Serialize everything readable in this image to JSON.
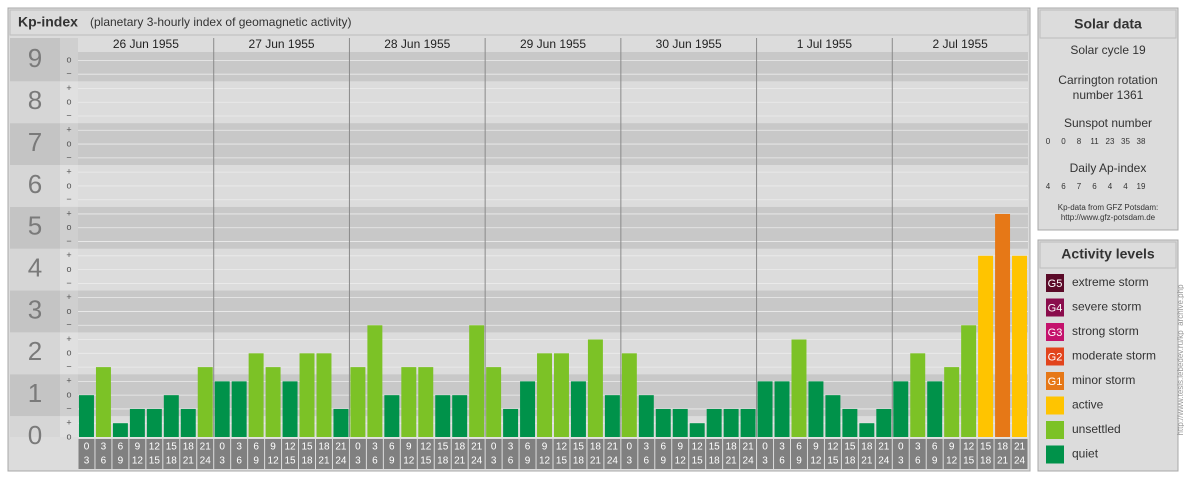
{
  "chart_data": {
    "type": "bar",
    "title": "Kp-index",
    "subtitle": "(planetary 3-hourly index of geomagnetic activity)",
    "days": [
      "26 Jun 1955",
      "27 Jun 1955",
      "28 Jun 1955",
      "29 Jun 1955",
      "30 Jun 1955",
      "1 Jul 1955",
      "2 Jul 1955"
    ],
    "time_slots": [
      [
        "0",
        "3"
      ],
      [
        "3",
        "6"
      ],
      [
        "6",
        "9"
      ],
      [
        "9",
        "12"
      ],
      [
        "12",
        "15"
      ],
      [
        "15",
        "18"
      ],
      [
        "18",
        "21"
      ],
      [
        "21",
        "24"
      ]
    ],
    "values": [
      1,
      1.67,
      0.33,
      0.67,
      0.67,
      1,
      0.67,
      1.67,
      1.33,
      1.33,
      2,
      1.67,
      1.33,
      2,
      2,
      0.67,
      1.67,
      2.67,
      1,
      1.67,
      1.67,
      1,
      1,
      2.67,
      1.67,
      0.67,
      1.33,
      2,
      2,
      1.33,
      2.33,
      1,
      2,
      1,
      0.67,
      0.67,
      0.33,
      0.67,
      0.67,
      0.67,
      1.33,
      1.33,
      2.33,
      1.33,
      1,
      0.67,
      0.33,
      0.67,
      1.33,
      2,
      1.33,
      1.67,
      2.67,
      4.33,
      5.33,
      4.33
    ],
    "colors": [
      "#00924a",
      "#7cc226",
      "#00924a",
      "#00924a",
      "#00924a",
      "#00924a",
      "#00924a",
      "#7cc226",
      "#00924a",
      "#00924a",
      "#7cc226",
      "#7cc226",
      "#00924a",
      "#7cc226",
      "#7cc226",
      "#00924a",
      "#7cc226",
      "#7cc226",
      "#00924a",
      "#7cc226",
      "#7cc226",
      "#00924a",
      "#00924a",
      "#7cc226",
      "#7cc226",
      "#00924a",
      "#00924a",
      "#7cc226",
      "#7cc226",
      "#00924a",
      "#7cc226",
      "#00924a",
      "#7cc226",
      "#00924a",
      "#00924a",
      "#00924a",
      "#00924a",
      "#00924a",
      "#00924a",
      "#00924a",
      "#00924a",
      "#00924a",
      "#7cc226",
      "#00924a",
      "#00924a",
      "#00924a",
      "#00924a",
      "#00924a",
      "#00924a",
      "#7cc226",
      "#00924a",
      "#7cc226",
      "#7cc226",
      "#ffc400",
      "#e67817",
      "#ffc400"
    ],
    "ylim": [
      0,
      9.2
    ],
    "yticks": [
      0,
      1,
      2,
      3,
      4,
      5,
      6,
      7,
      8,
      9
    ],
    "minor_yticks": [
      {
        "value": 0,
        "label": "o"
      },
      {
        "value": 0.33,
        "label": "+"
      },
      {
        "value": 0.67,
        "label": "−"
      },
      {
        "value": 1,
        "label": "o"
      },
      {
        "value": 1.33,
        "label": "+"
      },
      {
        "value": 1.67,
        "label": "−"
      },
      {
        "value": 2,
        "label": "o"
      },
      {
        "value": 2.33,
        "label": "+"
      },
      {
        "value": 2.67,
        "label": "−"
      },
      {
        "value": 3,
        "label": "o"
      },
      {
        "value": 3.33,
        "label": "+"
      },
      {
        "value": 3.67,
        "label": "−"
      },
      {
        "value": 4,
        "label": "o"
      },
      {
        "value": 4.33,
        "label": "+"
      },
      {
        "value": 4.67,
        "label": "−"
      },
      {
        "value": 5,
        "label": "o"
      },
      {
        "value": 5.33,
        "label": "+"
      },
      {
        "value": 5.67,
        "label": "−"
      },
      {
        "value": 6,
        "label": "o"
      },
      {
        "value": 6.33,
        "label": "+"
      },
      {
        "value": 6.67,
        "label": "−"
      },
      {
        "value": 7,
        "label": "o"
      },
      {
        "value": 7.33,
        "label": "+"
      },
      {
        "value": 7.67,
        "label": "−"
      },
      {
        "value": 8,
        "label": "o"
      },
      {
        "value": 8.33,
        "label": "+"
      },
      {
        "value": 8.67,
        "label": "−"
      },
      {
        "value": 9,
        "label": "o"
      }
    ],
    "grid": true
  },
  "solar_data": {
    "title": "Solar data",
    "cycle": "Solar cycle 19",
    "carrington": [
      "Carrington rotation",
      "number 1361"
    ],
    "sunspot_label": "Sunspot number",
    "sunspot": [
      "0",
      "0",
      "8",
      "11",
      "23",
      "35",
      "38"
    ],
    "ap_label": "Daily Ap-index",
    "ap": [
      "4",
      "6",
      "7",
      "6",
      "4",
      "4",
      "19"
    ],
    "source": [
      "Kp-data from GFZ Potsdam:",
      "http://www.gfz-potsdam.de"
    ]
  },
  "activity_levels": {
    "title": "Activity levels",
    "items": [
      {
        "badge": "G5",
        "label": "extreme storm",
        "color": "#5a0a28"
      },
      {
        "badge": "G4",
        "label": "severe storm",
        "color": "#8a0c4c"
      },
      {
        "badge": "G3",
        "label": "strong storm",
        "color": "#c4126c"
      },
      {
        "badge": "G2",
        "label": "moderate storm",
        "color": "#e2441c"
      },
      {
        "badge": "G1",
        "label": "minor storm",
        "color": "#e67817"
      },
      {
        "label": "active",
        "color": "#ffc400"
      },
      {
        "label": "unsettled",
        "color": "#7cc226"
      },
      {
        "label": "quiet",
        "color": "#00924a"
      }
    ]
  },
  "watermark": "http://www.tesis.lebedev.ru/kp_archive.php"
}
